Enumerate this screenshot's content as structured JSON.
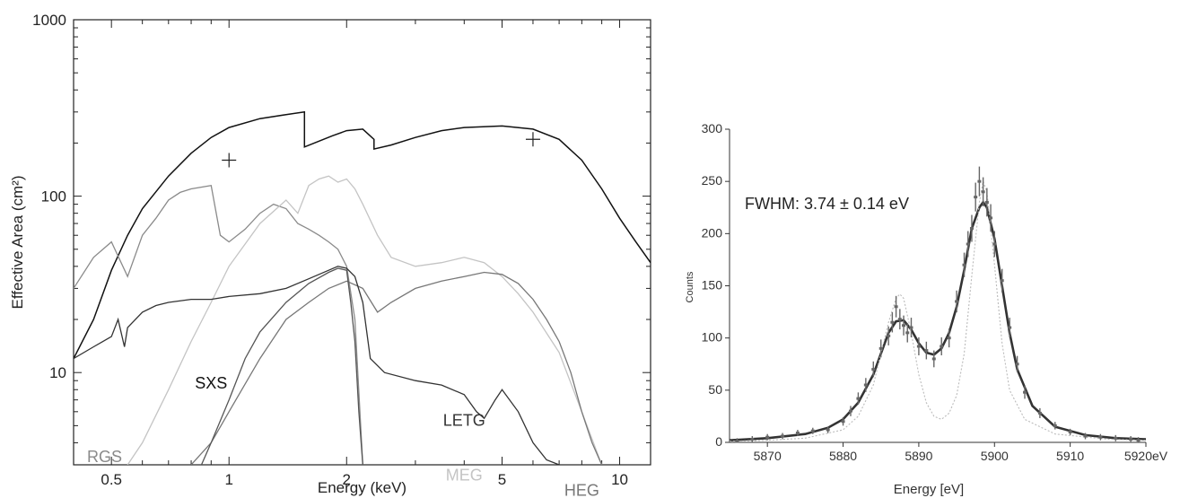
{
  "chart_data": [
    {
      "type": "line",
      "xlabel": "Energy (keV)",
      "ylabel": "Effective Area (cm²)",
      "x_scale": "log",
      "y_scale": "log",
      "xlim": [
        0.4,
        12
      ],
      "ylim": [
        3,
        1000
      ],
      "x_ticks": [
        0.5,
        1,
        2,
        5,
        10
      ],
      "x_tick_labels": [
        "0.5",
        "1",
        "2",
        "5",
        "10"
      ],
      "y_ticks": [
        10,
        100,
        1000
      ],
      "y_tick_labels": [
        "10",
        "100",
        "1000"
      ],
      "colors": {
        "SXS": "#111111",
        "RGS": "#8a8a8a",
        "MEG": "#c4c4c4",
        "HEG": "#777777",
        "LETG": "#333333",
        "LETG2": "#555555"
      },
      "series": [
        {
          "name": "SXS",
          "label_at": [
            0.9,
            8.1
          ],
          "x": [
            0.4,
            0.45,
            0.5,
            0.55,
            0.6,
            0.7,
            0.8,
            0.9,
            1.0,
            1.2,
            1.4,
            1.56,
            1.56,
            1.7,
            1.84,
            2.0,
            2.2,
            2.35,
            2.35,
            2.6,
            3.0,
            3.5,
            4.0,
            5.0,
            6.0,
            7.0,
            8.0,
            9.0,
            10.0,
            11.0,
            12.0
          ],
          "y": [
            12,
            20,
            38,
            60,
            85,
            130,
            175,
            215,
            245,
            275,
            290,
            300,
            190,
            205,
            220,
            235,
            240,
            210,
            185,
            195,
            215,
            235,
            245,
            250,
            240,
            210,
            160,
            110,
            75,
            55,
            42
          ]
        },
        {
          "name": "RGS",
          "label_at": [
            0.48,
            3.1
          ],
          "x": [
            0.35,
            0.4,
            0.45,
            0.5,
            0.55,
            0.6,
            0.65,
            0.7,
            0.75,
            0.8,
            0.9,
            0.95,
            1.0,
            1.1,
            1.2,
            1.3,
            1.4,
            1.5,
            1.6,
            1.7,
            1.8,
            1.9,
            2.0,
            2.1,
            2.2
          ],
          "y": [
            20,
            30,
            45,
            55,
            35,
            60,
            75,
            95,
            105,
            110,
            115,
            60,
            55,
            65,
            80,
            90,
            85,
            70,
            65,
            60,
            55,
            50,
            40,
            20,
            3
          ]
        },
        {
          "name": "MEG",
          "label_at": [
            4.0,
            2.45
          ],
          "x": [
            0.55,
            0.6,
            0.7,
            0.8,
            0.9,
            1.0,
            1.2,
            1.4,
            1.5,
            1.6,
            1.7,
            1.8,
            1.9,
            2.0,
            2.1,
            2.2,
            2.4,
            2.6,
            3.0,
            3.5,
            4.0,
            4.5,
            5.0,
            5.5,
            6.0,
            7.0,
            8.0,
            9.0
          ],
          "y": [
            3,
            4,
            8,
            15,
            25,
            40,
            70,
            95,
            80,
            115,
            125,
            130,
            120,
            125,
            110,
            90,
            60,
            45,
            40,
            42,
            45,
            42,
            35,
            28,
            22,
            13,
            6,
            3
          ]
        },
        {
          "name": "HEG",
          "label_at": [
            8.0,
            2.0
          ],
          "x": [
            0.8,
            0.9,
            1.0,
            1.2,
            1.4,
            1.6,
            1.8,
            2.0,
            2.2,
            2.4,
            2.6,
            3.0,
            3.5,
            4.0,
            4.5,
            5.0,
            5.5,
            6.0,
            6.5,
            7.0,
            7.5,
            8.0,
            8.5,
            9.0
          ],
          "y": [
            3,
            4,
            6,
            12,
            20,
            25,
            30,
            33,
            30,
            22,
            25,
            30,
            33,
            35,
            37,
            36,
            32,
            26,
            20,
            15,
            10,
            6,
            4,
            3
          ]
        },
        {
          "name": "LETG",
          "label_at": [
            4.0,
            5.0
          ],
          "x": [
            0.4,
            0.45,
            0.5,
            0.52,
            0.54,
            0.55,
            0.6,
            0.65,
            0.7,
            0.8,
            0.9,
            1.0,
            1.2,
            1.4,
            1.6,
            1.8,
            1.9,
            2.0,
            2.1,
            2.2,
            2.3,
            2.5,
            3.0,
            3.5,
            4.0,
            4.3,
            4.5,
            4.8,
            5.0,
            5.5,
            6.0,
            6.5,
            7.0
          ],
          "y": [
            12,
            14,
            16,
            20,
            14,
            18,
            22,
            24,
            25,
            26,
            26,
            27,
            28,
            30,
            34,
            38,
            40,
            39,
            35,
            25,
            12,
            10,
            9,
            8.5,
            7.5,
            6,
            5.5,
            7,
            8,
            6,
            4,
            3.2,
            3
          ]
        },
        {
          "name": "",
          "x": [
            0.85,
            0.9,
            1.0,
            1.1,
            1.2,
            1.4,
            1.6,
            1.8,
            1.9,
            2.0,
            2.05,
            2.1,
            2.15,
            2.2
          ],
          "y": [
            3,
            4,
            7,
            12,
            17,
            25,
            32,
            37,
            39,
            38,
            25,
            15,
            6,
            3
          ]
        }
      ],
      "markers": [
        {
          "x": 1.0,
          "y": 160
        },
        {
          "x": 6.0,
          "y": 210
        }
      ]
    },
    {
      "type": "line",
      "xlabel": "Energy [eV]",
      "ylabel": "Counts",
      "xlim": [
        5865,
        5920
      ],
      "ylim": [
        0,
        300
      ],
      "x_ticks": [
        5870,
        5880,
        5890,
        5900,
        5910,
        5920
      ],
      "x_tick_labels": [
        "5870",
        "5880",
        "5890",
        "5900",
        "5910",
        "5920eV"
      ],
      "y_ticks": [
        0,
        50,
        100,
        150,
        200,
        250,
        300
      ],
      "annotation": "FWHM: 3.74 ± 0.14 eV",
      "colors": {
        "fit": "#333333",
        "model": "#bbbbbb",
        "data": "#666666"
      },
      "series": [
        {
          "name": "",
          "style": "fit",
          "x": [
            5865,
            5870,
            5875,
            5878,
            5880,
            5882,
            5884,
            5885,
            5886,
            5887,
            5888,
            5889,
            5890,
            5891,
            5892,
            5893,
            5894,
            5895,
            5896,
            5897,
            5898,
            5898.5,
            5899,
            5900,
            5901,
            5902,
            5903,
            5905,
            5908,
            5912,
            5916,
            5920
          ],
          "y": [
            2,
            4,
            8,
            14,
            22,
            38,
            65,
            85,
            105,
            116,
            117,
            108,
            95,
            86,
            84,
            90,
            105,
            130,
            165,
            205,
            225,
            230,
            225,
            195,
            150,
            105,
            70,
            35,
            15,
            7,
            4,
            3
          ]
        },
        {
          "name": "",
          "style": "model",
          "x": [
            5865,
            5870,
            5875,
            5880,
            5882,
            5884,
            5885,
            5886,
            5887,
            5887.5,
            5888,
            5889,
            5890,
            5891,
            5892,
            5893,
            5894,
            5895,
            5896,
            5897,
            5898,
            5898.5,
            5899,
            5900,
            5901,
            5902,
            5904,
            5908,
            5915,
            5920
          ],
          "y": [
            1,
            2,
            4,
            12,
            25,
            55,
            85,
            115,
            138,
            142,
            138,
            105,
            65,
            38,
            25,
            22,
            28,
            45,
            85,
            160,
            230,
            250,
            240,
            170,
            95,
            50,
            22,
            8,
            3,
            2
          ]
        },
        {
          "name": "",
          "style": "data",
          "x": [
            5866,
            5868,
            5870,
            5872,
            5874,
            5876,
            5878,
            5880,
            5881,
            5882,
            5883,
            5884,
            5885,
            5886,
            5886.5,
            5887,
            5887.5,
            5888,
            5888.5,
            5889,
            5890,
            5891,
            5892,
            5893,
            5894,
            5895,
            5896,
            5896.5,
            5897,
            5897.5,
            5898,
            5898.5,
            5899,
            5899.5,
            5900,
            5901,
            5902,
            5903,
            5904,
            5906,
            5908,
            5910,
            5912,
            5914,
            5916,
            5918,
            5919
          ],
          "y": [
            1,
            3,
            5,
            6,
            9,
            11,
            12,
            20,
            30,
            42,
            55,
            70,
            90,
            102,
            115,
            130,
            118,
            112,
            105,
            110,
            92,
            88,
            80,
            92,
            100,
            135,
            170,
            190,
            205,
            235,
            250,
            240,
            230,
            215,
            190,
            155,
            110,
            75,
            48,
            28,
            16,
            10,
            6,
            5,
            4,
            3,
            2
          ]
        }
      ]
    }
  ]
}
